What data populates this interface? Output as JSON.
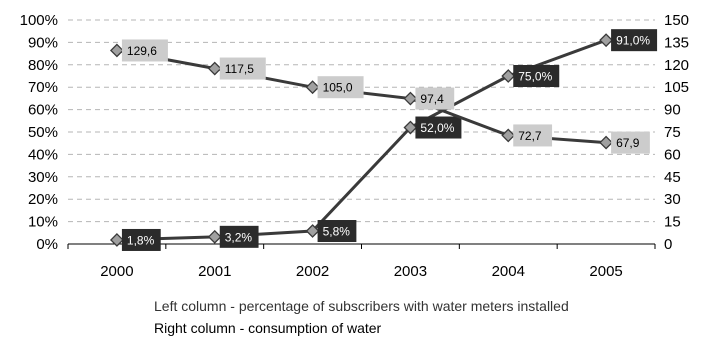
{
  "chart_data": {
    "type": "line",
    "categories": [
      "2000",
      "2001",
      "2002",
      "2003",
      "2004",
      "2005"
    ],
    "y_left": {
      "ticks": [
        "0%",
        "10%",
        "20%",
        "30%",
        "40%",
        "50%",
        "60%",
        "70%",
        "80%",
        "90%",
        "100%"
      ],
      "ylim": [
        0,
        100
      ],
      "unit": "%"
    },
    "y_right": {
      "ticks": [
        "0",
        "15",
        "30",
        "45",
        "60",
        "75",
        "90",
        "105",
        "120",
        "135",
        "150"
      ],
      "ylim": [
        0,
        150
      ]
    },
    "grid": "dashed horizontal",
    "series": [
      {
        "axis": "left",
        "values": [
          1.8,
          3.2,
          5.8,
          52.0,
          75.0,
          91.0
        ],
        "labels": [
          "1,8%",
          "3,2%",
          "5,8%",
          "52,0%",
          "75,0%",
          "91,0%"
        ],
        "line_color": "#3a3a3a",
        "label_bg": "#2b2b2b",
        "label_text_color": "#ffffff"
      },
      {
        "axis": "right",
        "values": [
          129.6,
          117.5,
          105.0,
          97.4,
          72.7,
          67.9
        ],
        "labels": [
          "129,6",
          "117,5",
          "105,0",
          "97,4",
          "72,7",
          "67,9"
        ],
        "line_color": "#3a3a3a",
        "label_bg": "#cccccc",
        "label_text_color": "#000000"
      }
    ],
    "legend": {
      "left_column": "Left column - percentage of subscribers with water meters installed",
      "right_column": "Right column - consumption of water"
    }
  }
}
